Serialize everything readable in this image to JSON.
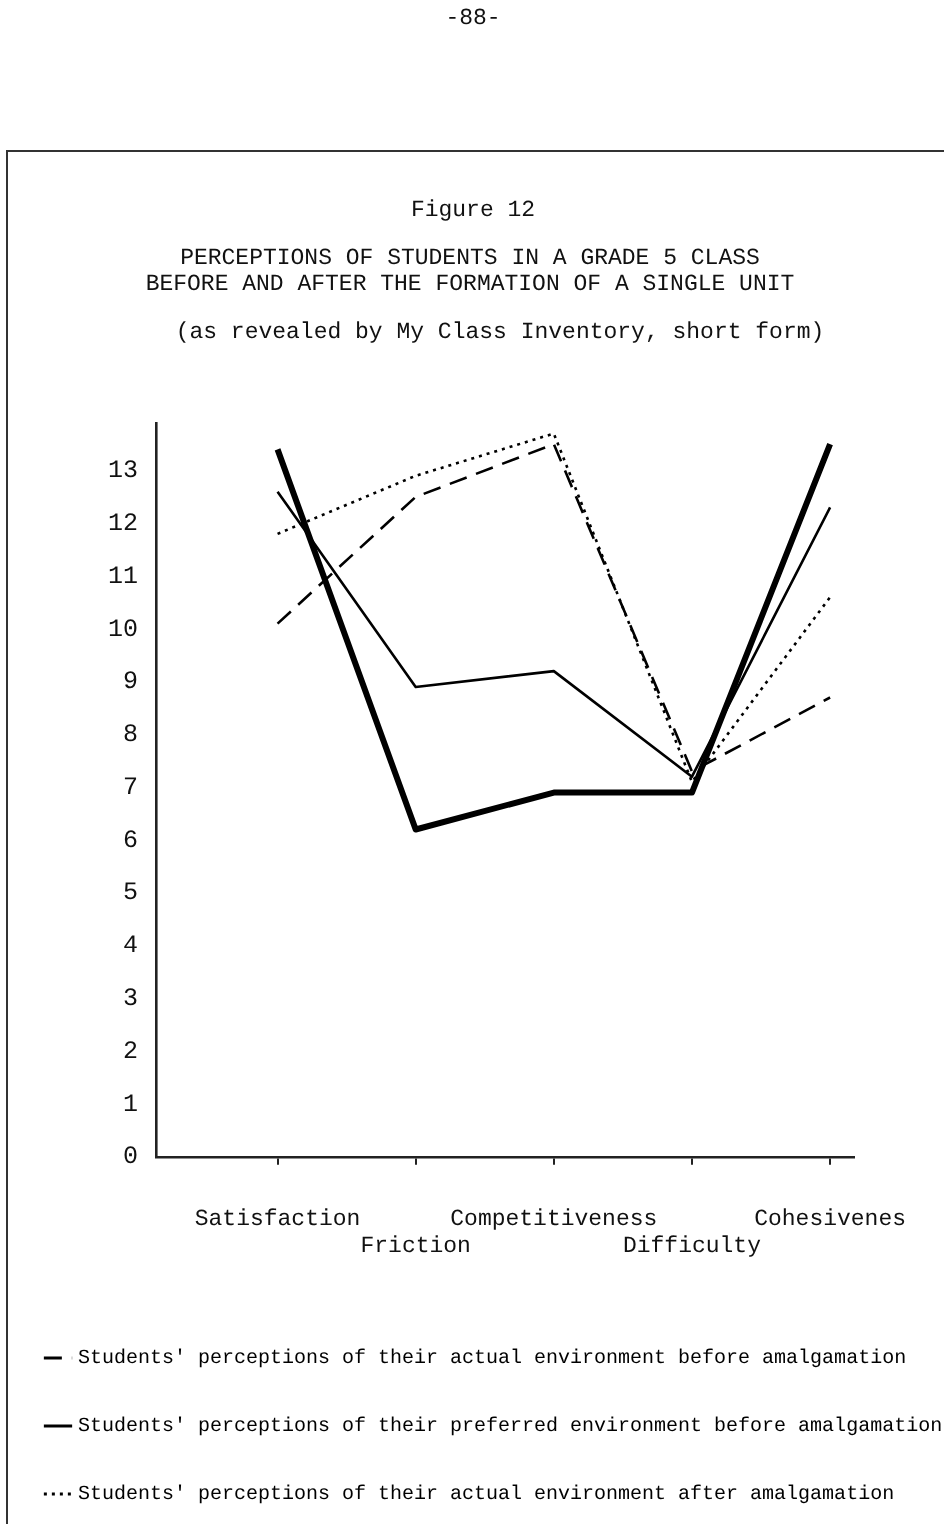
{
  "chart_data": {
    "type": "line",
    "title": "PERCEPTIONS OF STUDENTS IN A GRADE 5 CLASS BEFORE AND AFTER THE FORMATION OF A SINGLE UNIT",
    "subtitle": "(as revealed by My Class Inventory, short form)",
    "annotations": [
      "-88-",
      "Figure 12"
    ],
    "categories": [
      "Satisfaction",
      "Friction",
      "Competitiveness",
      "Difficulty",
      "Cohesivenes"
    ],
    "series": [
      {
        "name": "Students' perceptions of their actual environment before amalgamation",
        "color": "#000000",
        "line_style": "dashed",
        "values": [
          10.1,
          12.5,
          13.5,
          7.3,
          8.7
        ]
      },
      {
        "name": "Students' perceptions of their preferred environment before amalgamation",
        "color": "#000000",
        "line_style": "solid",
        "values": [
          12.6,
          8.9,
          9.2,
          7.2,
          12.3
        ]
      },
      {
        "name": "Students' perceptions of their actual environment after amalgamation",
        "color": "#000000",
        "line_style": "dotted",
        "values": [
          11.8,
          12.9,
          13.7,
          7.1,
          10.6
        ]
      },
      {
        "color": "#000000",
        "line_style": "solid",
        "values": [
          13.4,
          6.2,
          6.9,
          6.9,
          13.5
        ]
      }
    ],
    "ylim": [
      0,
      13.9
    ],
    "yticks": [
      0,
      1,
      2,
      3,
      4,
      5,
      6,
      7,
      8,
      9,
      10,
      11,
      12,
      13
    ],
    "grid": false,
    "legend": "bottom",
    "marker": "none"
  }
}
